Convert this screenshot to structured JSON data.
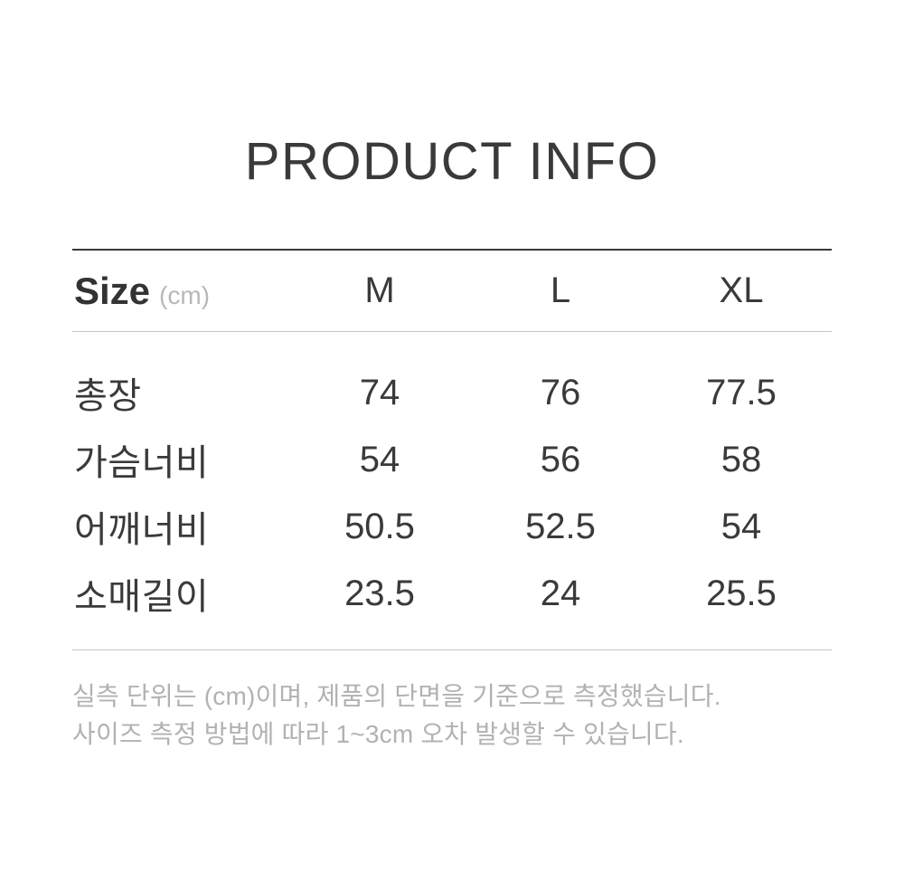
{
  "page": {
    "title": "PRODUCT INFO"
  },
  "size_table": {
    "header": {
      "label": "Size",
      "unit": "(cm)",
      "columns": [
        "M",
        "L",
        "XL"
      ]
    },
    "rows": [
      {
        "label": "총장",
        "values": [
          "74",
          "76",
          "77.5"
        ]
      },
      {
        "label": "가슴너비",
        "values": [
          "54",
          "56",
          "58"
        ]
      },
      {
        "label": "어깨너비",
        "values": [
          "50.5",
          "52.5",
          "54"
        ]
      },
      {
        "label": "소매길이",
        "values": [
          "23.5",
          "24",
          "25.5"
        ]
      }
    ]
  },
  "notes": {
    "line1": "실측 단위는 (cm)이며, 제품의 단면을 기준으로 측정했습니다.",
    "line2": "사이즈 측정 방법에 따라 1~3cm 오차 발생할 수 있습니다."
  },
  "colors": {
    "text_dark": "#3a3a3a",
    "text_gray": "#b2b2b2",
    "unit_gray": "#b8b8b8",
    "rule_dark": "#3a3a3a",
    "rule_light": "#c6c6c6",
    "background": "#ffffff"
  }
}
